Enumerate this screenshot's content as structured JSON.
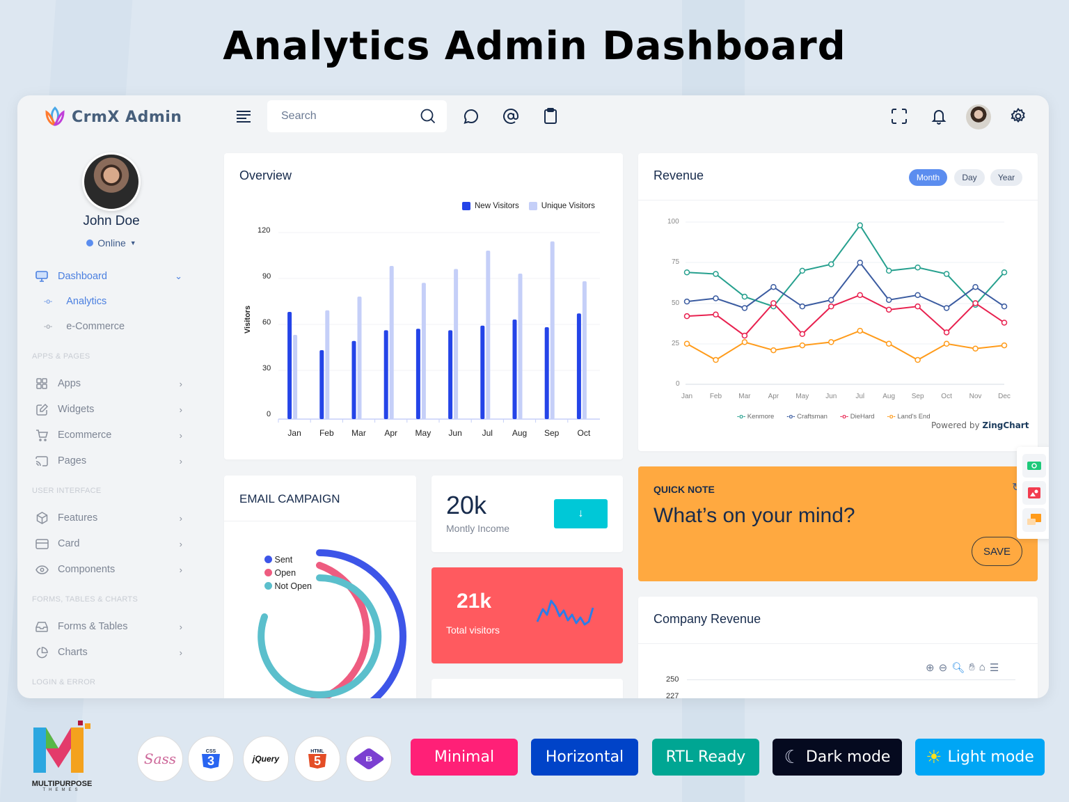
{
  "promo": {
    "title": "Analytics Admin Dashboard",
    "brand": "MULTIPURPOSE",
    "brand_sub": "THEMES",
    "tech_badges": [
      "Sass",
      "CSS3",
      "jQuery",
      "HTML5",
      "Bootstrap"
    ],
    "feature_buttons": [
      {
        "label": "Minimal",
        "color": "#ff2077"
      },
      {
        "label": "Horizontal",
        "color": "#0043c8"
      },
      {
        "label": "RTL Ready",
        "color": "#00a693"
      },
      {
        "label": "Dark mode",
        "color": "#050a1f"
      },
      {
        "label": "Light mode",
        "color": "#00a6f5"
      }
    ]
  },
  "app": {
    "logo_text": "CrmX Admin",
    "user": {
      "name": "John Doe",
      "status": "Online"
    },
    "sidebar": {
      "dashboard": {
        "label": "Dashboard",
        "icon": "monitor-icon"
      },
      "sub_items": [
        {
          "label": "Analytics",
          "active": true
        },
        {
          "label": "e-Commerce",
          "active": false
        }
      ],
      "sections": [
        {
          "label": "APPS & PAGES",
          "items": [
            {
              "label": "Apps",
              "icon": "grid-icon"
            },
            {
              "label": "Widgets",
              "icon": "edit-icon"
            },
            {
              "label": "Ecommerce",
              "icon": "cart-icon"
            },
            {
              "label": "Pages",
              "icon": "cast-icon"
            }
          ]
        },
        {
          "label": "USER INTERFACE",
          "items": [
            {
              "label": "Features",
              "icon": "box-icon"
            },
            {
              "label": "Card",
              "icon": "credit-card-icon"
            },
            {
              "label": "Components",
              "icon": "eye-icon"
            }
          ]
        },
        {
          "label": "FORMS, TABLES & CHARTS",
          "items": [
            {
              "label": "Forms & Tables",
              "icon": "inbox-icon"
            },
            {
              "label": "Charts",
              "icon": "pie-chart-icon"
            }
          ]
        },
        {
          "label": "LOGIN & ERROR",
          "items": []
        }
      ]
    },
    "topbar": {
      "search_placeholder": "Search",
      "icons": [
        "menu-icon",
        "search-icon",
        "chat-icon",
        "at-icon",
        "clipboard-icon",
        "fullscreen-icon",
        "bell-icon",
        "avatar",
        "gear-icon"
      ]
    },
    "overview": {
      "title": "Overview"
    },
    "revenue": {
      "title": "Revenue",
      "tabs": [
        {
          "label": "Month",
          "active": true
        },
        {
          "label": "Day",
          "active": false
        },
        {
          "label": "Year",
          "active": false
        }
      ],
      "powered_by": "Powered by",
      "powered_brand": "ZingChart"
    },
    "email_campaign": {
      "title": "EMAIL CAMPAIGN",
      "legend": [
        {
          "label": "Sent",
          "color": "#3d55e8"
        },
        {
          "label": "Open",
          "color": "#ee5c80"
        },
        {
          "label": "Not Open",
          "color": "#5bbfcc"
        }
      ]
    },
    "monthly_income": {
      "value": "20k",
      "label": "Montly Income"
    },
    "total_visitors": {
      "value": "21k",
      "label": "Total visitors"
    },
    "quick_note": {
      "title": "QUICK NOTE",
      "placeholder": "What’s on your mind?",
      "save_label": "SAVE"
    },
    "company_revenue": {
      "title": "Company Revenue",
      "y_ticks": [
        "250",
        "227"
      ]
    },
    "colors": {
      "accent": "#5b8def",
      "teal": "#00c8d7",
      "coral": "#ff5a5f",
      "orange": "#ffa940"
    }
  },
  "chart_data": [
    {
      "type": "bar",
      "title": "Overview",
      "categories": [
        "Jan",
        "Feb",
        "Mar",
        "Apr",
        "May",
        "Jun",
        "Jul",
        "Aug",
        "Sep",
        "Oct"
      ],
      "series": [
        {
          "name": "New Visitors",
          "color": "#2444e8",
          "values": [
            70,
            45,
            51,
            58,
            59,
            58,
            61,
            65,
            60,
            69
          ]
        },
        {
          "name": "Unique Visitors",
          "color": "#c5cff8",
          "values": [
            55,
            71,
            80,
            100,
            89,
            98,
            110,
            95,
            116,
            90
          ]
        }
      ],
      "xlabel": "",
      "ylabel": "Visitors",
      "yticks": [
        0,
        30,
        60,
        90,
        120
      ],
      "ylim": [
        0,
        120
      ],
      "legend_position": "top-right"
    },
    {
      "type": "line",
      "title": "Revenue",
      "categories": [
        "Jan",
        "Feb",
        "Mar",
        "Apr",
        "May",
        "Jun",
        "Jul",
        "Aug",
        "Sep",
        "Oct",
        "Nov",
        "Dec"
      ],
      "series": [
        {
          "name": "Kenmore",
          "color": "#26a08e",
          "values": [
            69,
            68,
            54,
            48,
            70,
            74,
            98,
            70,
            72,
            68,
            49,
            69
          ]
        },
        {
          "name": "Craftsman",
          "color": "#3a5ba0",
          "values": [
            51,
            53,
            47,
            60,
            48,
            52,
            75,
            52,
            55,
            47,
            60,
            48
          ]
        },
        {
          "name": "DieHard",
          "color": "#e8214f",
          "values": [
            42,
            43,
            30,
            50,
            31,
            48,
            55,
            46,
            48,
            32,
            50,
            38
          ]
        },
        {
          "name": "Land's End",
          "color": "#ff9b1a",
          "values": [
            25,
            15,
            26,
            21,
            24,
            26,
            33,
            25,
            15,
            25,
            22,
            24
          ]
        }
      ],
      "yticks": [
        0,
        25,
        50,
        75,
        100
      ],
      "ylim": [
        0,
        100
      ],
      "grid": true,
      "legend_position": "bottom"
    },
    {
      "type": "radialBar",
      "title": "EMAIL CAMPAIGN",
      "series": [
        {
          "name": "Sent"
        },
        {
          "name": "Open"
        },
        {
          "name": "Not Open"
        }
      ]
    }
  ]
}
